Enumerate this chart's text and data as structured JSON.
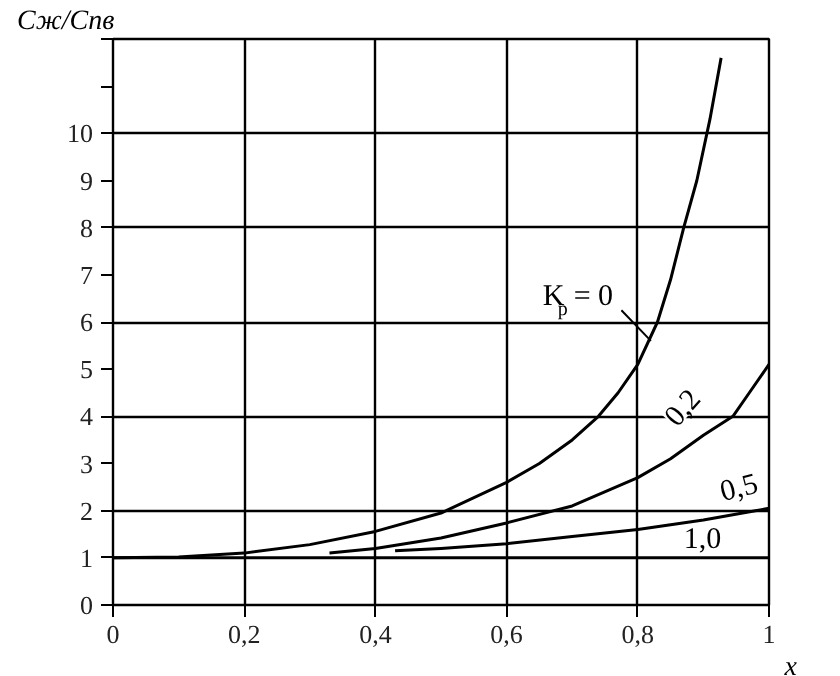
{
  "chart_data": {
    "type": "line",
    "xlabel": "x",
    "ylabel": "Cж/Cпв",
    "xlim": [
      0,
      1
    ],
    "ylim": [
      0,
      12
    ],
    "xticks": [
      0,
      {
        "value": 0.2,
        "label": "0,2"
      },
      {
        "value": 0.4,
        "label": "0,4"
      },
      {
        "value": 0.6,
        "label": "0,6"
      },
      {
        "value": 0.8,
        "label": "0,8"
      },
      1
    ],
    "yticks": [
      0,
      1,
      2,
      3,
      4,
      5,
      6,
      7,
      8,
      9,
      10,
      {
        "value": 11,
        "label": null
      },
      {
        "value": 12,
        "label": null
      }
    ],
    "grid": true,
    "marker": "none",
    "line_style": "solid",
    "series": [
      {
        "name": "K$_{р}$ = 0",
        "color": "#000000",
        "x": [
          0,
          0.1,
          0.2,
          0.3,
          0.4,
          0.5,
          0.6,
          0.65,
          0.7,
          0.74,
          0.77,
          0.8,
          0.83,
          0.85,
          0.87,
          0.89,
          0.91,
          0.927
        ],
        "values": [
          1,
          1.02,
          1.1,
          1.28,
          1.56,
          1.95,
          2.6,
          3.0,
          3.5,
          4.0,
          4.5,
          5.1,
          6.0,
          6.9,
          8.0,
          9.0,
          10.3,
          11.6
        ]
      },
      {
        "name": "0,2",
        "color": "#000000",
        "x": [
          0.33,
          0.4,
          0.5,
          0.6,
          0.7,
          0.8,
          0.85,
          0.9,
          0.945,
          0.97,
          1.0
        ],
        "values": [
          1.1,
          1.2,
          1.42,
          1.74,
          2.1,
          2.7,
          3.1,
          3.6,
          4.0,
          4.5,
          5.1
        ]
      },
      {
        "name": "0,5",
        "color": "#000000",
        "x": [
          0.43,
          0.5,
          0.6,
          0.7,
          0.8,
          0.9,
          1.0
        ],
        "values": [
          1.15,
          1.2,
          1.3,
          1.45,
          1.6,
          1.8,
          2.05
        ]
      },
      {
        "name": "1,0",
        "color": "#000000",
        "x": [
          0,
          1.0
        ],
        "values": [
          1,
          1
        ]
      }
    ]
  }
}
